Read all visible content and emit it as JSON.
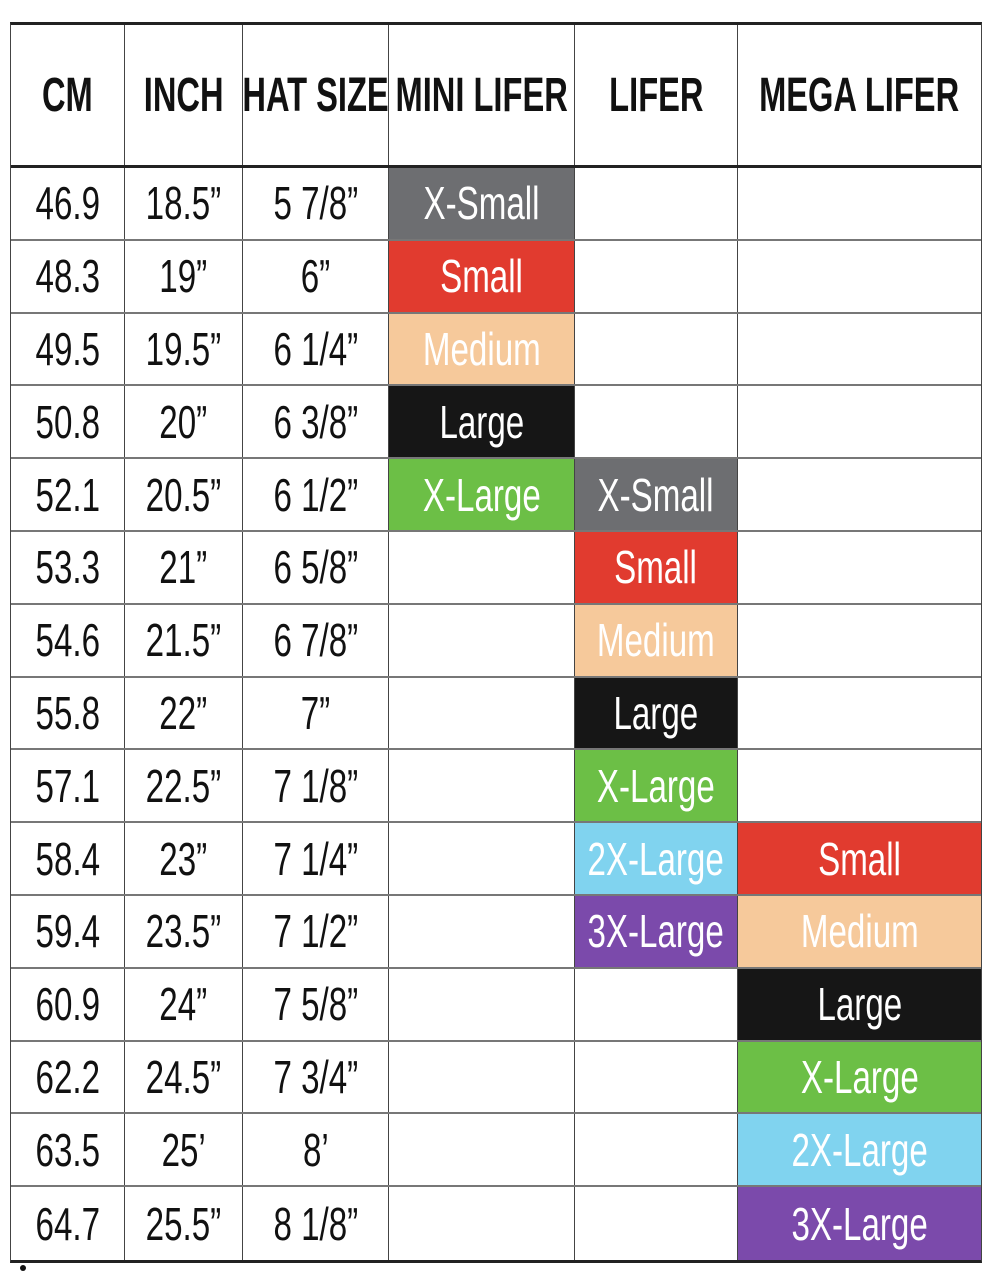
{
  "headers": [
    "CM",
    "INCH",
    "HAT SIZE",
    "MINI LIFER",
    "LIFER",
    "MEGA LIFER"
  ],
  "size_colors": {
    "X-Small": "#6d6e71",
    "Small": "#e13b2f",
    "Medium": "#f6c99b",
    "Large": "#161616",
    "X-Large": "#6cbf46",
    "2X-Large": "#80d3ef",
    "3X-Large": "#7b4aab"
  },
  "rows": [
    [
      "46.9",
      "18.5”",
      "5 7/8”",
      "X-Small",
      "",
      ""
    ],
    [
      "48.3",
      "19”",
      "6”",
      "Small",
      "",
      ""
    ],
    [
      "49.5",
      "19.5”",
      "6 1/4”",
      "Medium",
      "",
      ""
    ],
    [
      "50.8",
      "20”",
      "6 3/8”",
      "Large",
      "",
      ""
    ],
    [
      "52.1",
      "20.5”",
      "6 1/2”",
      "X-Large",
      "X-Small",
      ""
    ],
    [
      "53.3",
      "21”",
      "6 5/8”",
      "",
      "Small",
      ""
    ],
    [
      "54.6",
      "21.5”",
      "6 7/8”",
      "",
      "Medium",
      ""
    ],
    [
      "55.8",
      "22”",
      "7”",
      "",
      "Large",
      ""
    ],
    [
      "57.1",
      "22.5”",
      "7 1/8”",
      "",
      "X-Large",
      ""
    ],
    [
      "58.4",
      "23”",
      "7 1/4”",
      "",
      "2X-Large",
      "Small"
    ],
    [
      "59.4",
      "23.5”",
      "7 1/2”",
      "",
      "3X-Large",
      "Medium"
    ],
    [
      "60.9",
      "24”",
      "7 5/8”",
      "",
      "",
      "Large"
    ],
    [
      "62.2",
      "24.5”",
      "7 3/4”",
      "",
      "",
      "X-Large"
    ],
    [
      "63.5",
      "25’",
      "8’",
      "",
      "",
      "2X-Large"
    ],
    [
      "64.7",
      "25.5”",
      "8 1/8”",
      "",
      "",
      "3X-Large"
    ]
  ]
}
